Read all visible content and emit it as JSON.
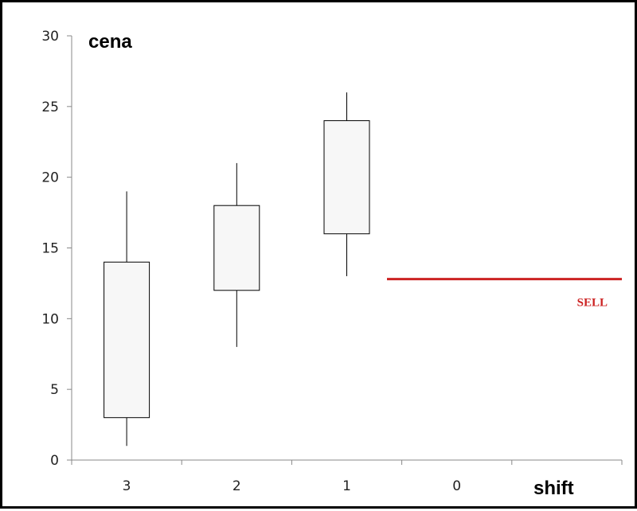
{
  "chart_data": {
    "type": "candlestick",
    "xlabel": "shift",
    "ylabel": "cena",
    "ylim": [
      0,
      30
    ],
    "y_ticks": [
      0,
      5,
      10,
      15,
      20,
      25,
      30
    ],
    "categories": [
      "3",
      "2",
      "1",
      "0"
    ],
    "candles": [
      {
        "x": "3",
        "open": 3,
        "close": 14,
        "low": 1,
        "high": 19
      },
      {
        "x": "2",
        "open": 12,
        "close": 18,
        "low": 8,
        "high": 21
      },
      {
        "x": "1",
        "open": 16,
        "close": 24,
        "low": 13,
        "high": 26
      }
    ],
    "signal": {
      "label": "SELL",
      "value": 12.8,
      "color": "#cc2222"
    },
    "candle_fill": "#f7f7f7",
    "candle_stroke": "#000000",
    "grid": false
  }
}
